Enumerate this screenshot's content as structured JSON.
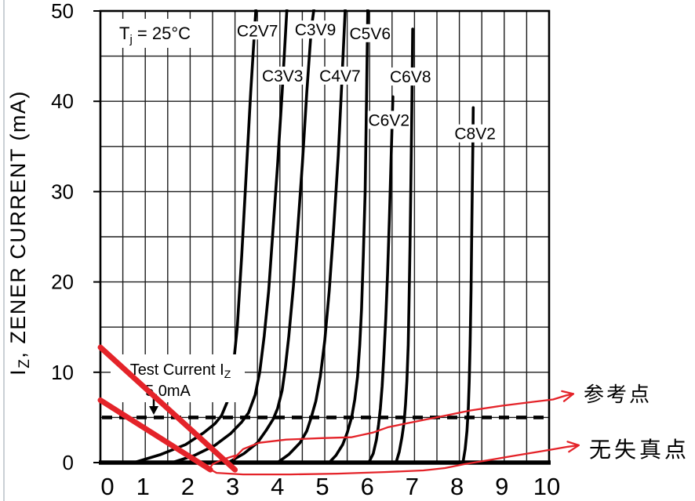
{
  "page": {
    "background": "#ffffff"
  },
  "colors": {
    "ink": "#000000",
    "grid": "#1c1c1c",
    "red": "#e42329",
    "page_edge": "#b9c0c7"
  },
  "chart_data": {
    "type": "line",
    "title_note": {
      "prefix": "T",
      "sub": "j",
      "rest": " = 25°C"
    },
    "y_axis": {
      "title_prefix": "I",
      "title_sub": "Z",
      "title_rest": ", ZENER CURRENT (mA)",
      "min": 0,
      "max": 50,
      "grid_step": 5,
      "tick_values": [
        0,
        10,
        20,
        30,
        40,
        50
      ],
      "tick_labels": [
        "0",
        "10",
        "20",
        "30",
        "40",
        "50"
      ]
    },
    "x_axis": {
      "min": 0,
      "max": 10,
      "grid_step": 0.5,
      "tick_values": [
        0,
        1,
        2,
        3,
        4,
        5,
        6,
        7,
        8,
        9,
        10
      ],
      "tick_labels": [
        "0",
        "1",
        "2",
        "3",
        "4",
        "5",
        "6",
        "7",
        "8",
        "9",
        "10"
      ]
    },
    "test_current": {
      "label_line1_prefix": "Test Current I",
      "label_line1_sub": "Z",
      "label_line2": "5.0mA",
      "value_mA": 5
    },
    "series": [
      {
        "name": "C2V7",
        "label": {
          "v": 3.5,
          "i": 47.8
        },
        "points": [
          [
            0.75,
            0
          ],
          [
            1.35,
            0.9
          ],
          [
            1.9,
            2.0
          ],
          [
            2.3,
            3.3
          ],
          [
            2.55,
            4.3
          ],
          [
            2.7,
            5.2
          ],
          [
            2.85,
            7.0
          ],
          [
            2.95,
            10
          ],
          [
            3.05,
            15
          ],
          [
            3.15,
            23
          ],
          [
            3.25,
            32
          ],
          [
            3.35,
            41
          ],
          [
            3.47,
            50.6
          ]
        ]
      },
      {
        "name": "C3V3",
        "label": {
          "v": 4.06,
          "i": 42.8
        },
        "points": [
          [
            1.6,
            0
          ],
          [
            2.1,
            0.8
          ],
          [
            2.55,
            1.9
          ],
          [
            2.9,
            3.2
          ],
          [
            3.15,
            4.5
          ],
          [
            3.3,
            5.5
          ],
          [
            3.45,
            7.5
          ],
          [
            3.55,
            10
          ],
          [
            3.65,
            14
          ],
          [
            3.75,
            19
          ],
          [
            3.85,
            26
          ],
          [
            3.95,
            33
          ],
          [
            4.05,
            41
          ],
          [
            4.16,
            50.6
          ]
        ]
      },
      {
        "name": "C3V9",
        "label": {
          "v": 4.79,
          "i": 47.9
        },
        "points": [
          [
            2.85,
            0
          ],
          [
            3.2,
            1.0
          ],
          [
            3.5,
            2.2
          ],
          [
            3.7,
            3.6
          ],
          [
            3.85,
            4.8
          ],
          [
            3.95,
            6.0
          ],
          [
            4.05,
            8.0
          ],
          [
            4.12,
            10.5
          ],
          [
            4.2,
            14
          ],
          [
            4.3,
            19.5
          ],
          [
            4.4,
            26
          ],
          [
            4.5,
            33
          ],
          [
            4.6,
            41
          ],
          [
            4.7,
            48
          ],
          [
            4.77,
            50.6
          ]
        ]
      },
      {
        "name": "C4V7",
        "label": {
          "v": 5.34,
          "i": 42.8
        },
        "points": [
          [
            3.95,
            0
          ],
          [
            4.2,
            0.9
          ],
          [
            4.45,
            2.2
          ],
          [
            4.6,
            3.5
          ],
          [
            4.7,
            5.0
          ],
          [
            4.8,
            6.8
          ],
          [
            4.9,
            9.5
          ],
          [
            5.0,
            13.5
          ],
          [
            5.1,
            19
          ],
          [
            5.2,
            26
          ],
          [
            5.3,
            34
          ],
          [
            5.38,
            42
          ],
          [
            5.46,
            50.6
          ]
        ]
      },
      {
        "name": "C5V6",
        "label": {
          "v": 6.01,
          "i": 47.5
        },
        "points": [
          [
            5.1,
            0
          ],
          [
            5.25,
            0.8
          ],
          [
            5.4,
            2.0
          ],
          [
            5.5,
            3.3
          ],
          [
            5.6,
            5.0
          ],
          [
            5.67,
            7.0
          ],
          [
            5.73,
            9.5
          ],
          [
            5.78,
            13
          ],
          [
            5.82,
            17
          ],
          [
            5.86,
            23
          ],
          [
            5.9,
            30
          ],
          [
            5.93,
            40
          ],
          [
            5.96,
            50.6
          ]
        ]
      },
      {
        "name": "C6V2",
        "label": {
          "v": 6.43,
          "i": 37.9
        },
        "points": [
          [
            5.98,
            0
          ],
          [
            6.08,
            1.0
          ],
          [
            6.15,
            2.5
          ],
          [
            6.2,
            4.2
          ],
          [
            6.24,
            6.0
          ],
          [
            6.28,
            8.5
          ],
          [
            6.32,
            12
          ],
          [
            6.36,
            16
          ],
          [
            6.4,
            21
          ],
          [
            6.44,
            27
          ],
          [
            6.48,
            34
          ],
          [
            6.52,
            40.5
          ]
        ]
      },
      {
        "name": "C6V8",
        "label": {
          "v": 6.91,
          "i": 42.7
        },
        "points": [
          [
            6.59,
            0
          ],
          [
            6.66,
            1.2
          ],
          [
            6.72,
            2.8
          ],
          [
            6.77,
            4.5
          ],
          [
            6.8,
            6.5
          ],
          [
            6.83,
            9.0
          ],
          [
            6.86,
            13
          ],
          [
            6.88,
            18
          ],
          [
            6.9,
            24
          ],
          [
            6.92,
            31
          ],
          [
            6.94,
            39
          ],
          [
            6.96,
            48
          ]
        ]
      },
      {
        "name": "C8V2",
        "label": {
          "v": 8.35,
          "i": 36.4
        },
        "points": [
          [
            8.08,
            0
          ],
          [
            8.13,
            1.5
          ],
          [
            8.17,
            3.5
          ],
          [
            8.2,
            6.0
          ],
          [
            8.22,
            9.0
          ],
          [
            8.24,
            13
          ],
          [
            8.26,
            19
          ],
          [
            8.28,
            27
          ],
          [
            8.3,
            35
          ],
          [
            8.31,
            39.3
          ]
        ]
      }
    ],
    "annotations": {
      "load_lines": [
        {
          "from": [
            0,
            12.76
          ],
          "to": [
            3.0,
            -0.79
          ]
        },
        {
          "from": [
            0,
            6.91
          ],
          "to": [
            2.45,
            -0.79
          ]
        }
      ],
      "pointers": [
        {
          "name": "reference-point",
          "text": "参考点",
          "points": [
            [
              2.97,
              0.44
            ],
            [
              3.18,
              1.49
            ],
            [
              3.53,
              2.19
            ],
            [
              4.14,
              2.54
            ],
            [
              4.93,
              2.71
            ],
            [
              5.59,
              2.8
            ],
            [
              6.07,
              3.32
            ],
            [
              6.42,
              3.93
            ],
            [
              7.03,
              4.55
            ],
            [
              7.64,
              5.16
            ],
            [
              8.25,
              5.77
            ],
            [
              8.95,
              6.29
            ],
            [
              9.65,
              6.73
            ],
            [
              10.09,
              6.99
            ],
            [
              10.38,
              7.43
            ],
            [
              10.54,
              7.6
            ]
          ]
        },
        {
          "name": "no-distortion-point",
          "text": "无失真点",
          "points": [
            [
              3.01,
              0.79
            ],
            [
              2.73,
              0.35
            ],
            [
              2.5,
              -0.17
            ],
            [
              2.43,
              -0.7
            ],
            [
              2.59,
              -1.14
            ],
            [
              3.18,
              -1.31
            ],
            [
              4.23,
              -1.31
            ],
            [
              5.28,
              -1.22
            ],
            [
              6.33,
              -1.05
            ],
            [
              7.2,
              -0.87
            ],
            [
              7.68,
              -0.61
            ],
            [
              8.11,
              -0.17
            ],
            [
              8.64,
              0.26
            ],
            [
              9.16,
              0.7
            ],
            [
              9.69,
              1.14
            ],
            [
              10.12,
              1.49
            ],
            [
              10.42,
              1.75
            ],
            [
              10.66,
              1.92
            ]
          ]
        }
      ]
    }
  }
}
